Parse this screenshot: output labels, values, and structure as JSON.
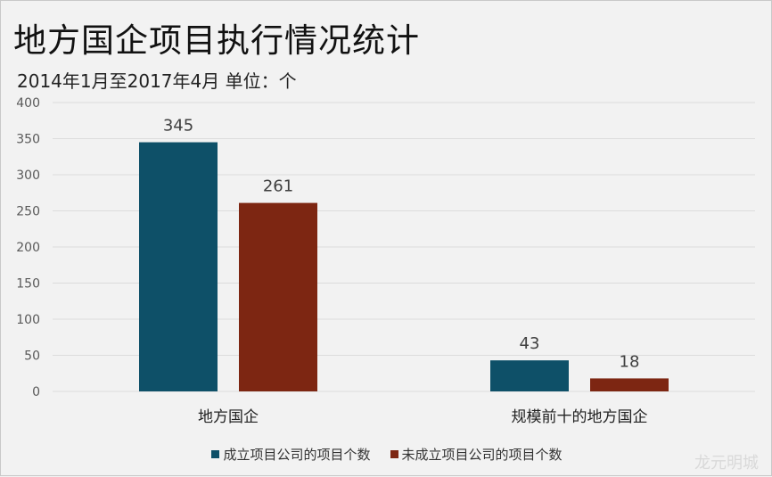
{
  "title": "地方国企项目执行情况统计",
  "subtitle": "2014年1月至2017年4月  单位：个",
  "watermark": "龙元明城",
  "colors": {
    "series1": "#0e5068",
    "series2": "#7d2612",
    "grid": "#dcdcdc",
    "axis_text": "#595959"
  },
  "chart_data": {
    "type": "bar",
    "categories": [
      "地方国企",
      "规模前十的地方国企"
    ],
    "series": [
      {
        "name": "成立项目公司的项目个数",
        "values": [
          345,
          43
        ]
      },
      {
        "name": "未成立项目公司的项目个数",
        "values": [
          261,
          18
        ]
      }
    ],
    "ylim": [
      0,
      400
    ],
    "yticks": [
      0,
      50,
      100,
      150,
      200,
      250,
      300,
      350,
      400
    ],
    "grid": true,
    "legend_position": "bottom"
  }
}
